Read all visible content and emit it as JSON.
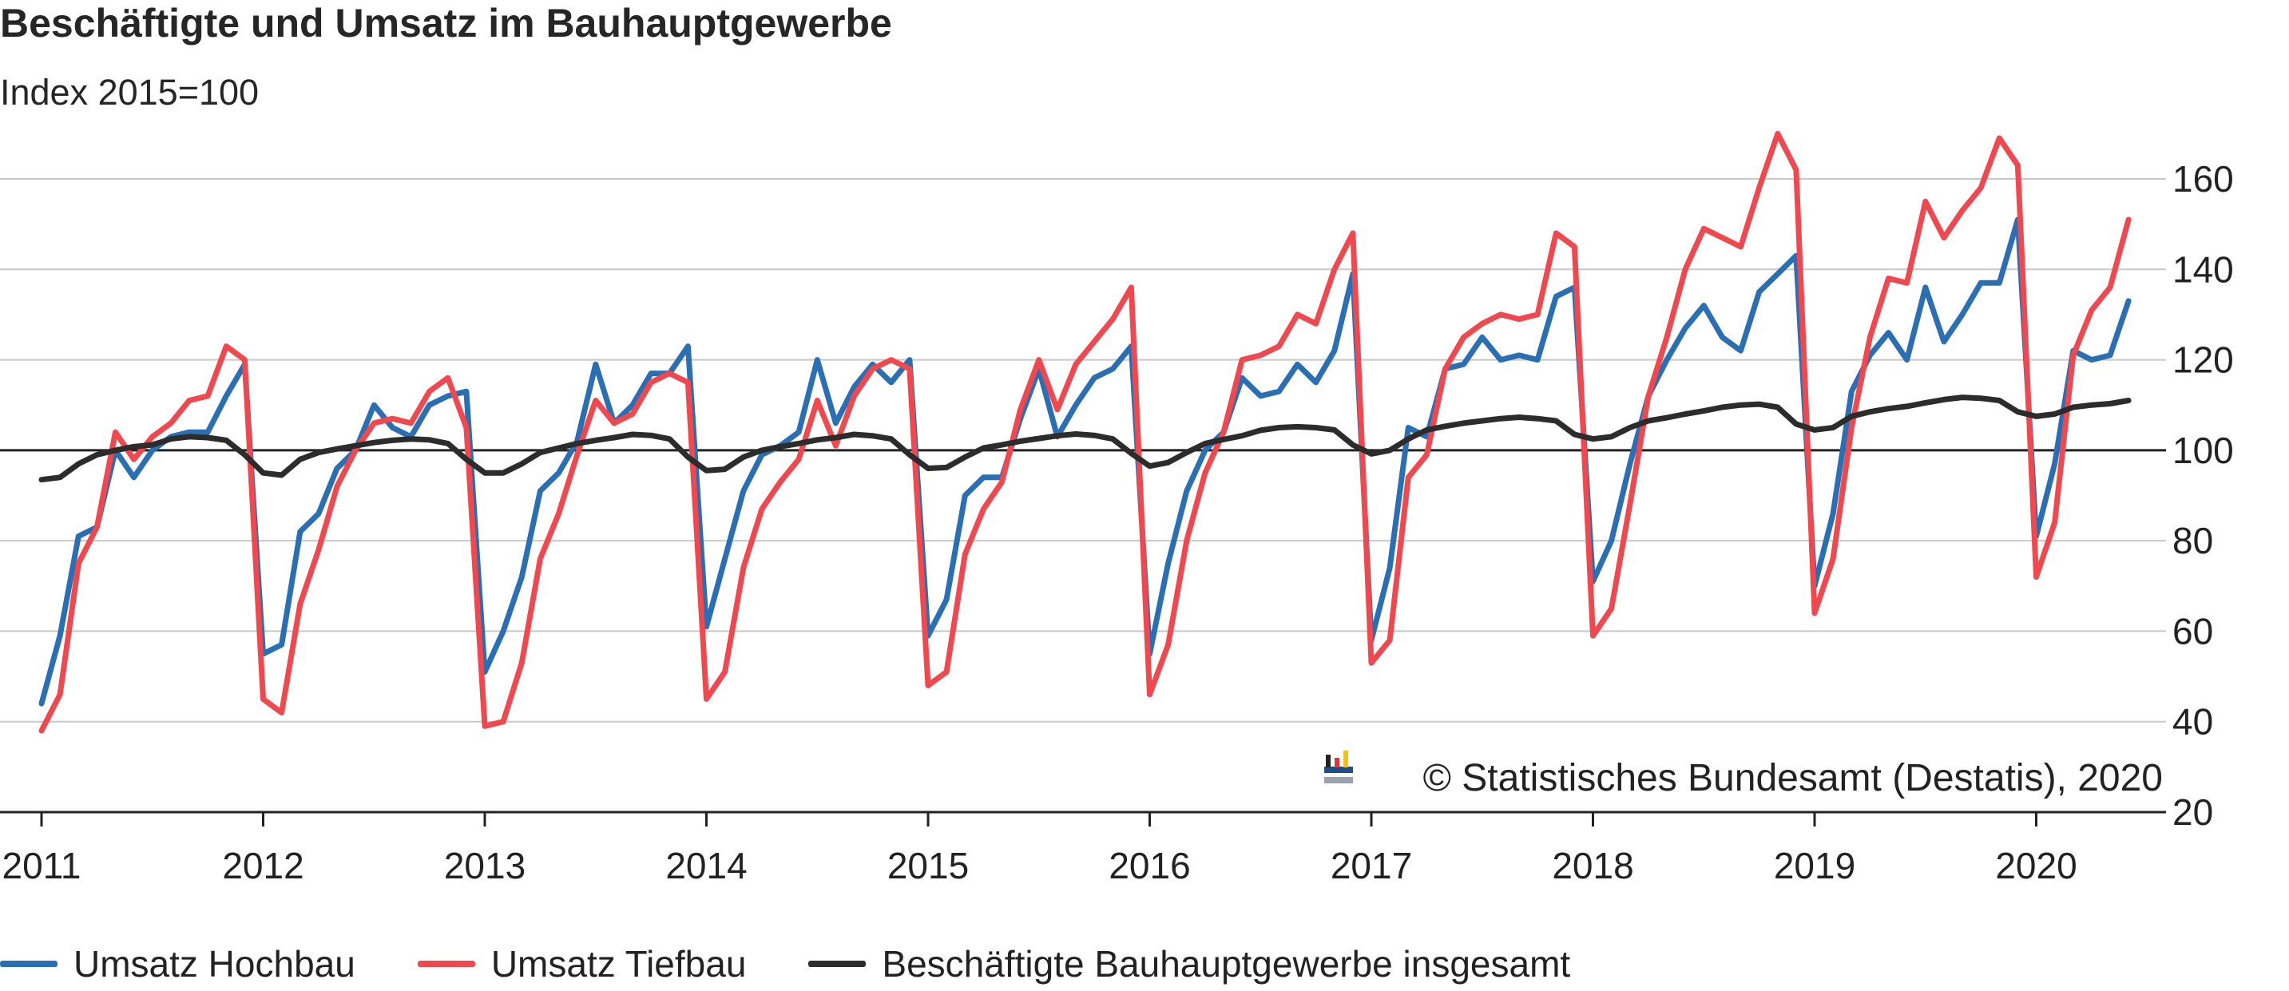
{
  "title": "Beschäftigte und Umsatz im Bauhauptgewerbe",
  "subtitle": "Index 2015=100",
  "credit": "© Statistisches Bundesamt (Destatis), 2020",
  "chart_data": {
    "type": "line",
    "title": "Beschäftigte und Umsatz im Bauhauptgewerbe",
    "subtitle": "Index 2015=100",
    "ylim": [
      20,
      170
    ],
    "y_ticks": [
      20,
      40,
      60,
      80,
      100,
      120,
      140,
      160
    ],
    "x_ticks": [
      "2011",
      "2012",
      "2013",
      "2014",
      "2015",
      "2016",
      "2017",
      "2018",
      "2019",
      "2020"
    ],
    "x_start": "2011-01",
    "x_end": "2020-06",
    "reference_line": 100,
    "grid": true,
    "legend_position": "bottom",
    "series": [
      {
        "name": "Umsatz Hochbau",
        "color": "#2a6eb3",
        "values": [
          44,
          59,
          81,
          83,
          100,
          94,
          100,
          103,
          104,
          104,
          112,
          119,
          55,
          57,
          82,
          86,
          96,
          100,
          110,
          105,
          103,
          110,
          112,
          113,
          51,
          60,
          72,
          91,
          95,
          102,
          119,
          106,
          110,
          117,
          117,
          123,
          61,
          76,
          91,
          99,
          101,
          104,
          120,
          106,
          114,
          119,
          115,
          120,
          59,
          67,
          90,
          94,
          94,
          107,
          118,
          103,
          110,
          116,
          118,
          123,
          55,
          75,
          91,
          100,
          104,
          116,
          112,
          113,
          119,
          115,
          122,
          139,
          58,
          74,
          105,
          103,
          118,
          119,
          125,
          120,
          121,
          120,
          134,
          136,
          71,
          80,
          97,
          112,
          120,
          127,
          132,
          125,
          122,
          135,
          139,
          143,
          70,
          86,
          113,
          121,
          126,
          120,
          136,
          124,
          130,
          137,
          137,
          151,
          81,
          97,
          122,
          120,
          121,
          133
        ]
      },
      {
        "name": "Umsatz Tiefbau",
        "color": "#f0484f",
        "values": [
          38,
          46,
          75,
          83,
          104,
          98,
          103,
          106,
          111,
          112,
          123,
          120,
          45,
          42,
          66,
          78,
          92,
          100,
          106,
          107,
          106,
          113,
          116,
          105,
          39,
          40,
          53,
          76,
          86,
          99,
          111,
          106,
          108,
          115,
          117,
          115,
          45,
          51,
          74,
          87,
          93,
          98,
          111,
          101,
          112,
          118,
          120,
          118,
          48,
          51,
          77,
          87,
          93,
          109,
          120,
          109,
          119,
          124,
          129,
          136,
          46,
          57,
          80,
          95,
          104,
          120,
          121,
          123,
          130,
          128,
          140,
          148,
          53,
          58,
          94,
          99,
          118,
          125,
          128,
          130,
          129,
          130,
          148,
          145,
          59,
          65,
          88,
          112,
          125,
          140,
          149,
          147,
          145,
          158,
          170,
          162,
          64,
          76,
          105,
          125,
          138,
          137,
          155,
          147,
          153,
          158,
          169,
          163,
          72,
          84,
          121,
          131,
          136,
          151
        ]
      },
      {
        "name": "Beschäftigte Bauhauptgewerbe insgesamt",
        "color": "#2c2c2c",
        "values": [
          93.5,
          94,
          97,
          99,
          100,
          100.8,
          101.2,
          102.5,
          103,
          102.8,
          102.2,
          99,
          95,
          94.5,
          98,
          99.5,
          100.3,
          101,
          101.7,
          102.2,
          102.5,
          102.3,
          101.5,
          98,
          95,
          95,
          97,
          99.5,
          100.5,
          101.5,
          102.2,
          102.8,
          103.5,
          103.3,
          102.5,
          98.5,
          95.5,
          95.8,
          98.5,
          100,
          100.8,
          101.5,
          102.3,
          102.8,
          103.5,
          103.2,
          102.5,
          99,
          96,
          96.2,
          98.5,
          100.5,
          101.2,
          102,
          102.6,
          103.2,
          103.6,
          103.3,
          102.5,
          99.3,
          96.5,
          97.3,
          99.5,
          101.5,
          102.4,
          103.2,
          104.4,
          105,
          105.2,
          105,
          104.5,
          101.2,
          99.2,
          100,
          102.5,
          104.5,
          105.3,
          106,
          106.5,
          107,
          107.3,
          107,
          106.5,
          103.5,
          102.5,
          103,
          105,
          106.5,
          107.2,
          108,
          108.7,
          109.5,
          110,
          110.2,
          109.5,
          105.8,
          104.5,
          105,
          107.5,
          108.5,
          109.2,
          109.7,
          110.5,
          111.2,
          111.7,
          111.5,
          111,
          108.5,
          107.5,
          108,
          109.5,
          110,
          110.3,
          111
        ]
      }
    ]
  }
}
